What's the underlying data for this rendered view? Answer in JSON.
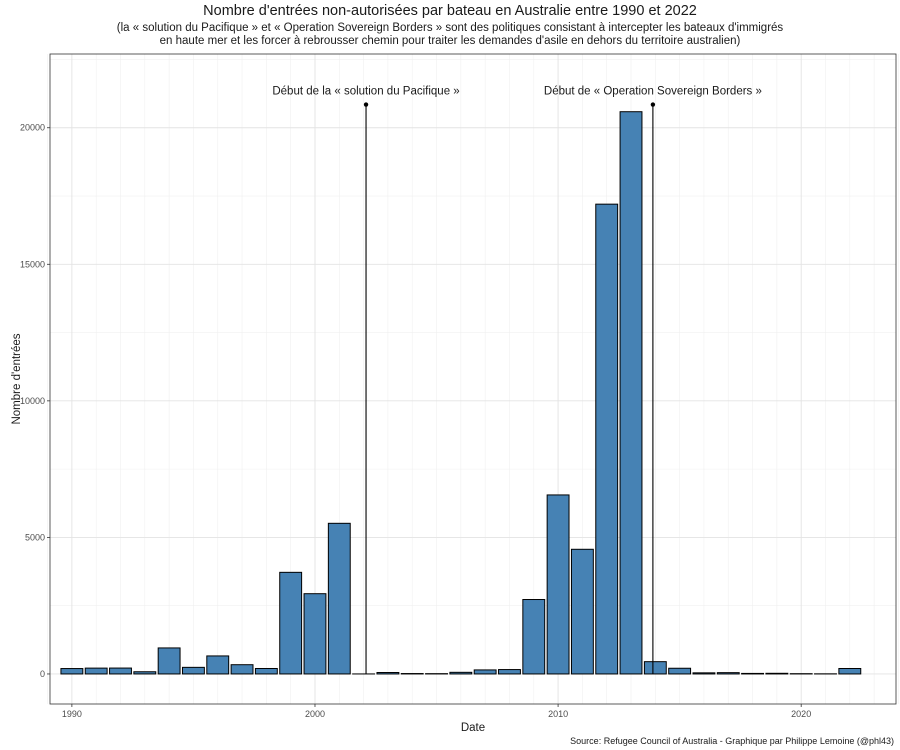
{
  "chart_data": {
    "type": "bar",
    "title": "Nombre d'entrées non-autorisées par bateau en Australie entre 1990 et 2022",
    "subtitle": [
      "(la « solution du Pacifique » et « Operation Sovereign Borders » sont des politiques consistant à intercepter les bateaux d'immigrés",
      "en haute mer et les forcer à rebrousser chemin pour traiter les demandes d'asile en dehors du territoire australien)"
    ],
    "xlabel": "Date",
    "ylabel": "Nombre d'entrées",
    "caption": "Source: Refugee Council of Australia - Graphique par Philippe Lemoine (@phl43)",
    "x_ticks": [
      1990,
      2000,
      2010,
      2020
    ],
    "y_ticks": [
      0,
      5000,
      10000,
      15000,
      20000
    ],
    "xlim": [
      1989.1,
      2023.9
    ],
    "ylim": [
      -1100,
      22700
    ],
    "grid": true,
    "bar_color": "#4682b4",
    "x": [
      1990,
      1991,
      1992,
      1993,
      1994,
      1995,
      1996,
      1997,
      1998,
      1999,
      2000,
      2001,
      2002,
      2003,
      2004,
      2005,
      2006,
      2007,
      2008,
      2009,
      2010,
      2011,
      2012,
      2013,
      2014,
      2015,
      2016,
      2017,
      2018,
      2019,
      2020,
      2021,
      2022
    ],
    "values": [
      198,
      214,
      216,
      81,
      953,
      242,
      660,
      339,
      200,
      3721,
      2939,
      5516,
      1,
      53,
      15,
      11,
      60,
      148,
      161,
      2726,
      6555,
      4565,
      17202,
      20587,
      450,
      209,
      41,
      48,
      20,
      24,
      10,
      5,
      200
    ],
    "annotations": [
      {
        "label": "Début de la « solution du Pacifique »",
        "x": 2002.1,
        "y": 20850
      },
      {
        "label": "Début de « Operation Sovereign Borders »",
        "x": 2013.9,
        "y": 20850
      }
    ]
  }
}
